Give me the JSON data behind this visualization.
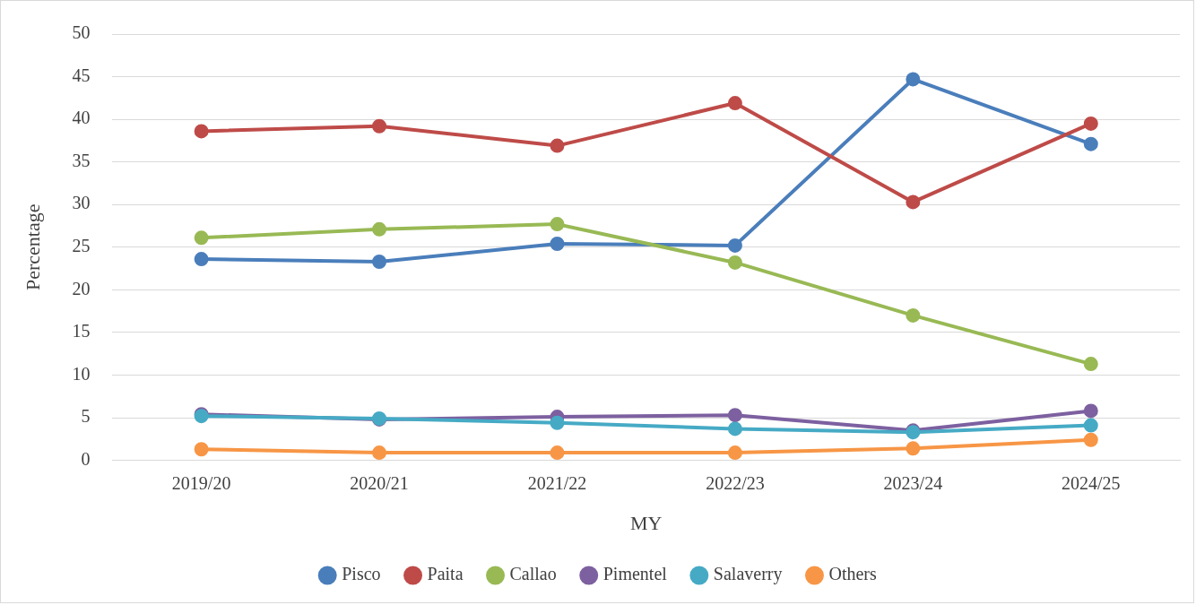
{
  "chart_data": {
    "type": "line",
    "xlabel": "MY",
    "ylabel": "Percentage",
    "categories": [
      "2019/20",
      "2020/21",
      "2021/22",
      "2022/23",
      "2023/24",
      "2024/25"
    ],
    "series": [
      {
        "name": "Pisco",
        "color": "#4a7ebb",
        "values": [
          23.6,
          23.3,
          25.4,
          25.2,
          44.7,
          37.1
        ]
      },
      {
        "name": "Paita",
        "color": "#be4b48",
        "values": [
          38.6,
          39.2,
          36.9,
          41.9,
          30.3,
          39.5
        ]
      },
      {
        "name": "Callao",
        "color": "#98b954",
        "values": [
          26.1,
          27.1,
          27.7,
          23.2,
          17.0,
          11.3
        ]
      },
      {
        "name": "Pimentel",
        "color": "#7d60a0",
        "values": [
          5.4,
          4.8,
          5.1,
          5.3,
          3.5,
          5.8
        ]
      },
      {
        "name": "Salaverry",
        "color": "#46aac5",
        "values": [
          5.2,
          4.9,
          4.4,
          3.7,
          3.3,
          4.1
        ]
      },
      {
        "name": "Others",
        "color": "#f79646",
        "values": [
          1.3,
          0.9,
          0.9,
          0.9,
          1.4,
          2.4
        ]
      }
    ],
    "ylim": [
      0,
      50
    ],
    "yticks": [
      0,
      5,
      10,
      15,
      20,
      25,
      30,
      35,
      40,
      45,
      50
    ],
    "grid": "y",
    "legend": "bottom",
    "marker": "circle",
    "line_style": "solid"
  }
}
